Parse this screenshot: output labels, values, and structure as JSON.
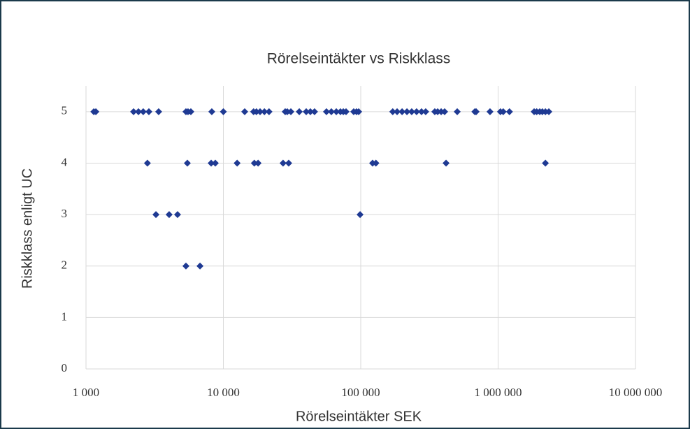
{
  "chart_data": {
    "type": "scatter",
    "title": "Rörelseintäkter vs Riskklass",
    "x_label": "Rörelseintäkter SEK",
    "y_label": "Riskklass enligt UC",
    "log_x": true,
    "grid": true,
    "color": "#1f3a93",
    "xlim": [
      1000,
      10000000
    ],
    "xticks": [
      {
        "value": 1000,
        "label": "1 000"
      },
      {
        "value": 10000,
        "label": "10 000"
      },
      {
        "value": 100000,
        "label": "100 000"
      },
      {
        "value": 1000000,
        "label": "1 000 000"
      },
      {
        "value": 10000000,
        "label": "10 000 000"
      }
    ],
    "ylim": [
      0,
      5.5
    ],
    "yticks": [
      0,
      1,
      2,
      3,
      4,
      5
    ],
    "x": [
      1140,
      1180,
      2220,
      2410,
      2610,
      2870,
      3380,
      5340,
      5530,
      5800,
      8240,
      10000,
      14300,
      16600,
      17400,
      18500,
      19900,
      21500,
      28200,
      29200,
      31000,
      35700,
      40100,
      43000,
      46100,
      56300,
      61100,
      66400,
      71200,
      74700,
      78200,
      88900,
      93100,
      96600,
      171000,
      184000,
      200000,
      217000,
      235000,
      255000,
      277000,
      297000,
      346000,
      363000,
      385000,
      408000,
      504000,
      677000,
      692000,
      873000,
      1040000,
      1090000,
      1210000,
      1830000,
      1910000,
      2010000,
      2100000,
      2210000,
      2340000,
      2800,
      5470,
      8150,
      8740,
      12600,
      16800,
      17900,
      27200,
      29900,
      122000,
      129000,
      418000,
      2210000,
      3230,
      4030,
      4640,
      98900,
      5340,
      6760
    ],
    "y": [
      5,
      5,
      5,
      5,
      5,
      5,
      5,
      5,
      5,
      5,
      5,
      5,
      5,
      5,
      5,
      5,
      5,
      5,
      5,
      5,
      5,
      5,
      5,
      5,
      5,
      5,
      5,
      5,
      5,
      5,
      5,
      5,
      5,
      5,
      5,
      5,
      5,
      5,
      5,
      5,
      5,
      5,
      5,
      5,
      5,
      5,
      5,
      5,
      5,
      5,
      5,
      5,
      5,
      5,
      5,
      5,
      5,
      5,
      5,
      4,
      4,
      4,
      4,
      4,
      4,
      4,
      4,
      4,
      4,
      4,
      4,
      4,
      3,
      3,
      3,
      3,
      2,
      2
    ]
  }
}
